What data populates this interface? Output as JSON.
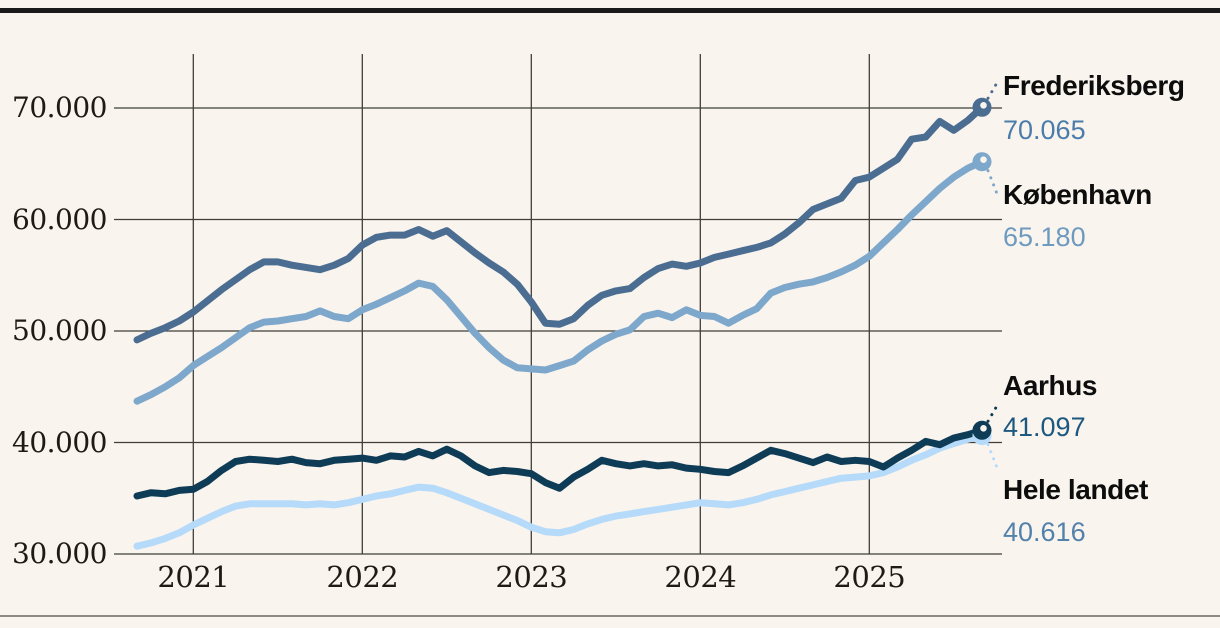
{
  "figure": {
    "background": "#f9f4ed",
    "top_rule_color": "#191919",
    "bottom_rule_color": "#8d8a84"
  },
  "chart_data": {
    "type": "line",
    "grid": true,
    "grid_color": "#3f3e3b",
    "legend_position": "right-end-labels",
    "ylim": [
      30000,
      70000
    ],
    "months_total": 61,
    "x_start": "2020-09",
    "x_end": "2025-09",
    "frequency": "monthly",
    "y_ticks": [
      {
        "label": "30.000",
        "value": 30000
      },
      {
        "label": "40.000",
        "value": 40000
      },
      {
        "label": "50.000",
        "value": 50000
      },
      {
        "label": "60.000",
        "value": 60000
      },
      {
        "label": "70.000",
        "value": 70000
      }
    ],
    "x_ticks": [
      {
        "label": "2021",
        "month_index": 4
      },
      {
        "label": "2022",
        "month_index": 16
      },
      {
        "label": "2023",
        "month_index": 28
      },
      {
        "label": "2024",
        "month_index": 40
      },
      {
        "label": "2025",
        "month_index": 52
      }
    ],
    "series": [
      {
        "name": "Frederiksberg",
        "color": "#4a6d91",
        "value_color": "#4b7dab",
        "end_label": "70.065",
        "end_value": 70065,
        "label_side": "up",
        "values": [
          49200,
          49800,
          50300,
          50900,
          51700,
          52700,
          53700,
          54600,
          55500,
          56200,
          56200,
          55900,
          55700,
          55500,
          55900,
          56500,
          57700,
          58400,
          58600,
          58600,
          59100,
          58500,
          59000,
          58000,
          57000,
          56100,
          55300,
          54200,
          52600,
          50700,
          50600,
          51100,
          52300,
          53200,
          53600,
          53800,
          54800,
          55600,
          56000,
          55800,
          56100,
          56600,
          56900,
          57200,
          57500,
          57900,
          58700,
          59700,
          60900,
          61400,
          61900,
          63500,
          63800,
          64600,
          65400,
          67200,
          67400,
          68800,
          68000,
          68900,
          70065
        ]
      },
      {
        "name": "København",
        "color": "#7ea7cc",
        "value_color": "#6f9ac0",
        "end_label": "65.180",
        "end_value": 65180,
        "label_side": "down",
        "values": [
          43700,
          44300,
          45000,
          45800,
          46900,
          47700,
          48500,
          49400,
          50300,
          50800,
          50900,
          51100,
          51300,
          51800,
          51300,
          51100,
          51900,
          52400,
          53000,
          53600,
          54300,
          54000,
          52800,
          51300,
          49800,
          48500,
          47400,
          46700,
          46600,
          46500,
          46900,
          47300,
          48300,
          49100,
          49700,
          50100,
          51300,
          51600,
          51200,
          51900,
          51400,
          51300,
          50700,
          51400,
          52000,
          53400,
          53900,
          54200,
          54400,
          54800,
          55300,
          55900,
          56700,
          57900,
          59100,
          60400,
          61600,
          62800,
          63800,
          64600,
          65180
        ]
      },
      {
        "name": "Aarhus",
        "color": "#0e3c56",
        "value_color": "#1d5880",
        "end_label": "41.097",
        "end_value": 41097,
        "label_side": "up",
        "values": [
          35200,
          35500,
          35400,
          35700,
          35800,
          36500,
          37500,
          38300,
          38500,
          38400,
          38300,
          38500,
          38200,
          38100,
          38400,
          38500,
          38600,
          38400,
          38800,
          38700,
          39200,
          38800,
          39400,
          38800,
          37900,
          37300,
          37500,
          37400,
          37200,
          36400,
          35900,
          36900,
          37600,
          38400,
          38100,
          37900,
          38100,
          37900,
          38000,
          37700,
          37600,
          37400,
          37300,
          37900,
          38600,
          39300,
          39000,
          38600,
          38200,
          38700,
          38300,
          38400,
          38300,
          37800,
          38600,
          39300,
          40100,
          39800,
          40400,
          40700,
          41097
        ]
      },
      {
        "name": "Hele landet",
        "color": "#b5dafa",
        "value_color": "#5282ab",
        "end_label": "40.616",
        "end_value": 40616,
        "label_side": "down",
        "values": [
          30700,
          31000,
          31400,
          31900,
          32600,
          33200,
          33800,
          34300,
          34500,
          34500,
          34500,
          34500,
          34400,
          34500,
          34400,
          34600,
          34900,
          35200,
          35400,
          35700,
          36000,
          35900,
          35500,
          35000,
          34500,
          34000,
          33500,
          33000,
          32400,
          32000,
          31900,
          32200,
          32700,
          33100,
          33400,
          33600,
          33800,
          34000,
          34200,
          34400,
          34600,
          34500,
          34400,
          34600,
          34900,
          35300,
          35600,
          35900,
          36200,
          36500,
          36800,
          36900,
          37000,
          37300,
          37800,
          38400,
          38900,
          39500,
          39900,
          40300,
          40616
        ]
      }
    ]
  }
}
